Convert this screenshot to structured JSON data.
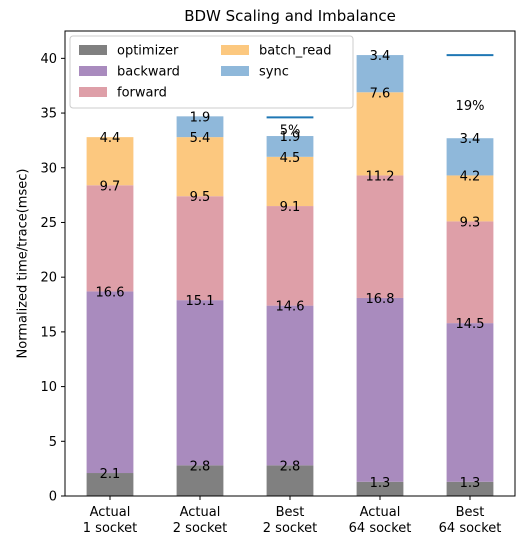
{
  "chart_data": {
    "type": "bar",
    "stacked": true,
    "title": "BDW Scaling and Imbalance",
    "ylabel": "Normalized time/trace(msec)",
    "xlabel": "",
    "ylim": [
      0,
      42.5
    ],
    "yticks": [
      "0",
      "5",
      "10",
      "15",
      "20",
      "25",
      "30",
      "35",
      "40"
    ],
    "ytick_values": [
      0,
      5,
      10,
      15,
      20,
      25,
      30,
      35,
      40
    ],
    "categories": [
      [
        "Actual",
        "1 socket"
      ],
      [
        "Actual",
        "2 socket"
      ],
      [
        "Best",
        "2 socket"
      ],
      [
        "Actual",
        "64 socket"
      ],
      [
        "Best",
        "64 socket"
      ]
    ],
    "series": [
      {
        "name": "optimizer",
        "color": "#808080",
        "values": [
          2.1,
          2.8,
          2.8,
          1.3,
          1.3
        ]
      },
      {
        "name": "backward",
        "color": "#a98bbe",
        "values": [
          16.6,
          15.1,
          14.6,
          16.8,
          14.5
        ]
      },
      {
        "name": "forward",
        "color": "#de9fa8",
        "values": [
          9.7,
          9.5,
          9.1,
          11.2,
          9.3
        ]
      },
      {
        "name": "batch_read",
        "color": "#fcc87f",
        "values": [
          4.4,
          5.4,
          4.5,
          7.6,
          4.2
        ]
      },
      {
        "name": "sync",
        "color": "#8fb8da",
        "values": [
          0.0,
          1.9,
          1.9,
          3.4,
          3.4
        ]
      }
    ],
    "segment_labels": [
      [
        "2.1",
        "16.6",
        "9.7",
        "4.4",
        ""
      ],
      [
        "2.8",
        "15.1",
        "9.5",
        "5.4",
        "1.9"
      ],
      [
        "2.8",
        "14.6",
        "9.1",
        "4.5",
        "1.9"
      ],
      [
        "1.3",
        "16.8",
        "11.2",
        "7.6",
        "3.4"
      ],
      [
        "1.3",
        "14.5",
        "9.3",
        "4.2",
        "3.4"
      ]
    ],
    "reference_lines": [
      {
        "category_index": 2,
        "value": 34.6,
        "color": "#1f77b4",
        "annotation": "5%"
      },
      {
        "category_index": 4,
        "value": 40.3,
        "color": "#1f77b4",
        "annotation": "19%"
      }
    ],
    "legend": {
      "placement": "top-left",
      "columns": 2,
      "entries": [
        "optimizer",
        "backward",
        "forward",
        "batch_read",
        "sync"
      ]
    },
    "grid": false
  }
}
